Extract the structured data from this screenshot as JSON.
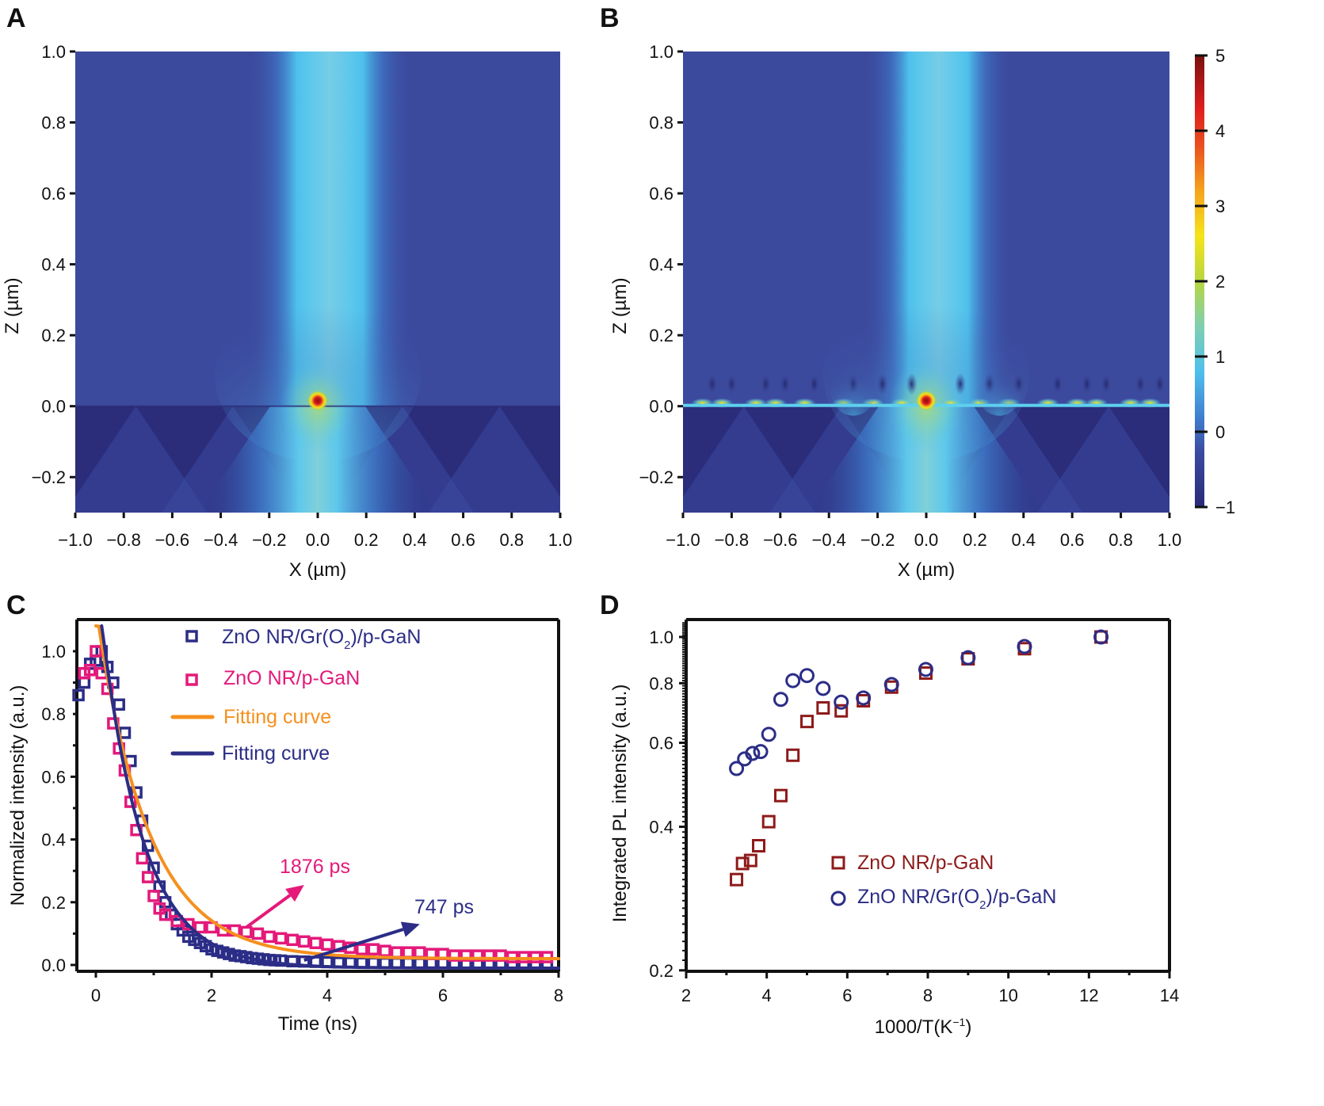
{
  "colors": {
    "navy": "#2b2d86",
    "magenta": "#e4197a",
    "orange": "#f5901e",
    "darkred": "#8e1a1a",
    "field_bg": "#3c4a9e",
    "field_dark": "#2b2c7a",
    "field_beam": "#4ec0ec"
  },
  "chart_data": [
    {
      "panel": "A",
      "type": "heatmap",
      "title": "",
      "xlabel": "X (µm)",
      "ylabel": "Z (µm)",
      "xlim": [
        -1.0,
        1.0
      ],
      "ylim": [
        -0.3,
        1.0
      ],
      "xticks": [
        "−1.0",
        "−0.8",
        "−0.6",
        "−0.4",
        "−0.2",
        "0.0",
        "0.2",
        "0.4",
        "0.6",
        "0.8",
        "1.0"
      ],
      "xtick_values": [
        -1.0,
        -0.8,
        -0.6,
        -0.4,
        -0.2,
        0.0,
        0.2,
        0.4,
        0.6,
        0.8,
        1.0
      ],
      "yticks": [
        "1.0",
        "0.8",
        "0.6",
        "0.4",
        "0.2",
        "0.0",
        "−0.2"
      ],
      "ytick_values": [
        1.0,
        0.8,
        0.6,
        0.4,
        0.2,
        0.0,
        -0.2
      ],
      "features": {
        "source_position": [
          0.0,
          0.02
        ],
        "source_peak_value": 5,
        "interface_z": 0.0,
        "beam_center_x": 0.05,
        "beam_half_width": 0.18,
        "beam_value": 1.0,
        "background_value": 0.0,
        "substrate_value": -0.5
      }
    },
    {
      "panel": "B",
      "type": "heatmap",
      "title": "",
      "xlabel": "X (µm)",
      "ylabel": "Z (µm)",
      "xlim": [
        -1.0,
        1.0
      ],
      "ylim": [
        -0.3,
        1.0
      ],
      "xticks": [
        "−1.0",
        "−0.8",
        "−0.6",
        "−0.4",
        "−0.2",
        "0.0",
        "0.2",
        "0.4",
        "0.6",
        "0.8",
        "1.0"
      ],
      "xtick_values": [
        -1.0,
        -0.8,
        -0.6,
        -0.4,
        -0.2,
        0.0,
        0.2,
        0.4,
        0.6,
        0.8,
        1.0
      ],
      "yticks": [
        "1.0",
        "0.8",
        "0.6",
        "0.4",
        "0.2",
        "0.0",
        "−0.2"
      ],
      "ytick_values": [
        1.0,
        0.8,
        0.6,
        0.4,
        0.2,
        0.0,
        -0.2
      ],
      "colorbar": {
        "range": [
          -1,
          5
        ],
        "ticks": [
          "5",
          "4",
          "3",
          "2",
          "1",
          "0",
          "−1"
        ],
        "tick_values": [
          5,
          4,
          3,
          2,
          1,
          0,
          -1
        ],
        "colormap": [
          "#2a2a78",
          "#3b4aa0",
          "#3b8fd6",
          "#4ec0ec",
          "#7fcfb0",
          "#b8d640",
          "#f5e41a",
          "#f5a31e",
          "#e8501e",
          "#e01e1e",
          "#7a1010"
        ]
      },
      "features": {
        "source_position": [
          0.0,
          0.02
        ],
        "source_peak_value": 5,
        "interface_z": 0.0,
        "interface_hotspots_x": [
          -0.92,
          -0.84,
          -0.7,
          -0.62,
          -0.5,
          -0.34,
          -0.22,
          -0.1,
          0.1,
          0.22,
          0.34,
          0.5,
          0.62,
          0.7,
          0.84,
          0.92
        ],
        "beam_center_x": 0.05,
        "beam_half_width": 0.16,
        "beam_value": 1.0,
        "background_value": 0.0,
        "substrate_value": -0.5
      }
    },
    {
      "panel": "C",
      "type": "scatter",
      "title": "",
      "xlabel": "Time (ns)",
      "ylabel": "Normalized intensity (a.u.)",
      "xlim": [
        -0.3,
        8
      ],
      "ylim": [
        -0.02,
        1.1
      ],
      "xticks": [
        "0",
        "2",
        "4",
        "6",
        "8"
      ],
      "xtick_values": [
        0,
        2,
        4,
        6,
        8
      ],
      "yticks": [
        "0.0",
        "0.2",
        "0.4",
        "0.6",
        "0.8",
        "1.0"
      ],
      "ytick_values": [
        0.0,
        0.2,
        0.4,
        0.6,
        0.8,
        1.0
      ],
      "legend_position": "top-center",
      "series": [
        {
          "name": "ZnO NR/Gr(O₂)/p-GaN",
          "label_main": "ZnO NR/Gr(O",
          "label_sub": "2",
          "label_tail": ")/p-GaN",
          "marker": "square",
          "color": "#2b2d86",
          "x": [
            -0.3,
            -0.2,
            -0.1,
            0.0,
            0.1,
            0.2,
            0.3,
            0.4,
            0.5,
            0.6,
            0.7,
            0.8,
            0.9,
            1.0,
            1.1,
            1.2,
            1.3,
            1.4,
            1.5,
            1.6,
            1.7,
            1.8,
            1.9,
            2.0,
            2.1,
            2.2,
            2.3,
            2.4,
            2.5,
            2.6,
            2.7,
            2.8,
            2.9,
            3.0,
            3.1,
            3.2,
            3.4,
            3.6,
            3.8,
            4.0,
            4.2,
            4.4,
            4.6,
            4.8,
            5.0,
            5.2,
            5.4,
            5.6,
            5.8,
            6.0,
            6.2,
            6.4,
            6.6,
            6.8,
            7.0,
            7.2,
            7.4,
            7.6,
            7.8,
            8.0
          ],
          "y": [
            0.86,
            0.9,
            0.96,
            0.97,
            1.0,
            0.95,
            0.9,
            0.83,
            0.74,
            0.65,
            0.55,
            0.46,
            0.38,
            0.31,
            0.25,
            0.2,
            0.16,
            0.13,
            0.11,
            0.09,
            0.08,
            0.07,
            0.06,
            0.05,
            0.045,
            0.04,
            0.035,
            0.03,
            0.028,
            0.025,
            0.022,
            0.02,
            0.018,
            0.016,
            0.015,
            0.014,
            0.012,
            0.011,
            0.01,
            0.009,
            0.008,
            0.008,
            0.007,
            0.007,
            0.006,
            0.006,
            0.006,
            0.005,
            0.005,
            0.005,
            0.005,
            0.005,
            0.005,
            0.005,
            0.005,
            0.005,
            0.005,
            0.005,
            0.005,
            0.005
          ]
        },
        {
          "name": "ZnO NR/p-GaN",
          "marker": "square",
          "color": "#e4197a",
          "x": [
            -0.2,
            -0.1,
            0.0,
            0.1,
            0.2,
            0.3,
            0.4,
            0.5,
            0.6,
            0.7,
            0.8,
            0.9,
            1.0,
            1.1,
            1.2,
            1.4,
            1.6,
            1.8,
            2.0,
            2.2,
            2.4,
            2.6,
            2.8,
            3.0,
            3.2,
            3.4,
            3.6,
            3.8,
            4.0,
            4.2,
            4.4,
            4.6,
            4.8,
            5.0,
            5.2,
            5.4,
            5.6,
            5.8,
            6.0,
            6.2,
            6.4,
            6.6,
            6.8,
            7.0,
            7.2,
            7.4,
            7.6,
            7.8,
            8.0
          ],
          "y": [
            0.93,
            0.94,
            1.0,
            0.93,
            0.88,
            0.77,
            0.69,
            0.62,
            0.52,
            0.43,
            0.34,
            0.28,
            0.22,
            0.18,
            0.16,
            0.14,
            0.13,
            0.12,
            0.12,
            0.11,
            0.11,
            0.105,
            0.1,
            0.09,
            0.085,
            0.08,
            0.075,
            0.07,
            0.065,
            0.06,
            0.055,
            0.05,
            0.05,
            0.045,
            0.04,
            0.04,
            0.04,
            0.035,
            0.035,
            0.03,
            0.03,
            0.03,
            0.03,
            0.03,
            0.025,
            0.025,
            0.025,
            0.025,
            0.025
          ]
        }
      ],
      "fits": [
        {
          "name": "Fitting curve",
          "color": "#f5901e",
          "amplitude": 1.12,
          "tau_ns": 0.9,
          "offset": 0.02,
          "t_start": 0.0
        },
        {
          "name": "Fitting curve",
          "color": "#2b2d86",
          "amplitude": 1.1,
          "tau_ns": 0.72,
          "offset": -0.01,
          "t_start": 0.1
        }
      ],
      "annotations": [
        {
          "text": "1876 ps",
          "color": "#e4197a",
          "arrow_from": [
            2.6,
            0.12
          ],
          "arrow_to": [
            3.6,
            0.255
          ]
        },
        {
          "text": "747 ps",
          "color": "#2b2d86",
          "arrow_from": [
            3.6,
            0.015
          ],
          "arrow_to": [
            5.6,
            0.13
          ]
        }
      ]
    },
    {
      "panel": "D",
      "type": "scatter",
      "title": "",
      "xlabel": "1000/T(K⁻¹)",
      "xlabel_main": "1000/T(K",
      "xlabel_sup": "−1",
      "xlabel_tail": ")",
      "ylabel": "Integrated PL intensity (a.u.)",
      "xlim": [
        2,
        14
      ],
      "ylim": [
        0.2,
        1.1
      ],
      "yscale": "log",
      "xticks": [
        "2",
        "4",
        "6",
        "8",
        "10",
        "12",
        "14"
      ],
      "xtick_values": [
        2,
        4,
        6,
        8,
        10,
        12,
        14
      ],
      "yticks": [
        "1.0",
        "0.8",
        "0.6",
        "0.4",
        "0.2"
      ],
      "ytick_values": [
        1.0,
        0.8,
        0.6,
        0.4,
        0.2
      ],
      "legend_position": "center-right",
      "series": [
        {
          "name": "ZnO NR/p-GaN",
          "marker": "square",
          "color": "#8e1a1a",
          "x": [
            3.25,
            3.4,
            3.6,
            3.8,
            4.05,
            4.35,
            4.65,
            5.0,
            5.4,
            5.85,
            6.4,
            7.1,
            7.95,
            9.0,
            10.4,
            12.3
          ],
          "y": [
            0.31,
            0.335,
            0.34,
            0.365,
            0.41,
            0.465,
            0.565,
            0.665,
            0.71,
            0.7,
            0.735,
            0.785,
            0.84,
            0.9,
            0.945,
            1.0
          ]
        },
        {
          "name": "ZnO NR/Gr(O₂)/p-GaN",
          "label_main": "ZnO NR/Gr(O",
          "label_sub": "2",
          "label_tail": ")/p-GaN",
          "marker": "circle",
          "color": "#2b2d86",
          "x": [
            3.25,
            3.45,
            3.65,
            3.85,
            4.05,
            4.35,
            4.65,
            5.0,
            5.4,
            5.85,
            6.4,
            7.1,
            7.95,
            9.0,
            10.4,
            12.3
          ],
          "y": [
            0.53,
            0.555,
            0.57,
            0.575,
            0.625,
            0.74,
            0.81,
            0.83,
            0.78,
            0.73,
            0.745,
            0.795,
            0.855,
            0.905,
            0.955,
            1.0
          ]
        }
      ]
    }
  ],
  "panels": {
    "A": {
      "letter": "A"
    },
    "B": {
      "letter": "B"
    },
    "C": {
      "letter": "C"
    },
    "D": {
      "letter": "D"
    }
  }
}
